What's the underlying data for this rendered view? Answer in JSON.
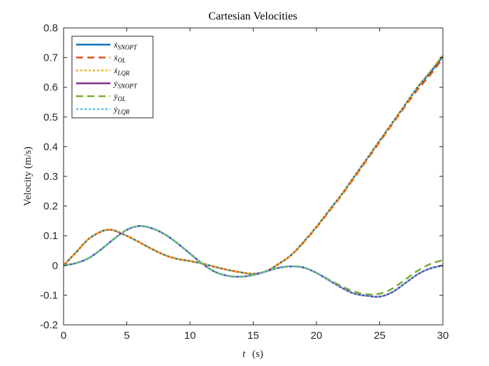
{
  "chart_data": {
    "type": "line",
    "title": "Cartesian Velocities",
    "xlabel": {
      "var": "t",
      "unit": "(s)"
    },
    "ylabel": "Velocity (m/s)",
    "xlim": [
      0,
      30
    ],
    "ylim": [
      -0.2,
      0.8
    ],
    "xticks": [
      "0",
      "5",
      "10",
      "15",
      "20",
      "25",
      "30"
    ],
    "yticks": [
      "-0.2",
      "-0.1",
      "0",
      "0.1",
      "0.2",
      "0.3",
      "0.4",
      "0.5",
      "0.6",
      "0.7",
      "0.8"
    ],
    "grid": false,
    "legend_position": "top-left",
    "series": [
      {
        "name": "ẋSNOPT",
        "base": "ẋ",
        "sub": "SNOPT",
        "color": "#0072bd",
        "dash": "solid",
        "x": [
          0,
          1,
          2,
          3,
          3.5,
          4,
          5,
          6,
          7,
          8,
          9,
          10,
          11,
          12,
          13,
          14,
          15,
          16,
          17,
          18,
          19,
          20,
          21,
          22,
          23,
          24,
          25,
          26,
          27,
          28,
          29,
          30
        ],
        "y": [
          0,
          0.045,
          0.09,
          0.115,
          0.12,
          0.118,
          0.1,
          0.078,
          0.055,
          0.035,
          0.022,
          0.015,
          0.006,
          -0.005,
          -0.015,
          -0.023,
          -0.028,
          -0.02,
          0.005,
          0.035,
          0.08,
          0.13,
          0.185,
          0.24,
          0.3,
          0.36,
          0.42,
          0.48,
          0.54,
          0.6,
          0.65,
          0.705
        ]
      },
      {
        "name": "ẋOL",
        "base": "ẋ",
        "sub": "OL",
        "color": "#d95319",
        "dash": "dashed",
        "x": [
          0,
          1,
          2,
          3,
          3.5,
          4,
          5,
          6,
          7,
          8,
          9,
          10,
          11,
          12,
          13,
          14,
          15,
          16,
          17,
          18,
          19,
          20,
          21,
          22,
          23,
          24,
          25,
          26,
          27,
          28,
          29,
          30
        ],
        "y": [
          0,
          0.045,
          0.09,
          0.115,
          0.12,
          0.118,
          0.1,
          0.078,
          0.055,
          0.035,
          0.022,
          0.015,
          0.006,
          -0.005,
          -0.015,
          -0.023,
          -0.028,
          -0.02,
          0.005,
          0.035,
          0.078,
          0.128,
          0.182,
          0.237,
          0.296,
          0.356,
          0.416,
          0.476,
          0.535,
          0.592,
          0.642,
          0.698
        ]
      },
      {
        "name": "ẋLQR",
        "base": "ẋ",
        "sub": "LQR",
        "color": "#edb120",
        "dash": "dotted",
        "x": [
          0,
          1,
          2,
          3,
          3.5,
          4,
          5,
          6,
          7,
          8,
          9,
          10,
          11,
          12,
          13,
          14,
          15,
          16,
          17,
          18,
          19,
          20,
          21,
          22,
          23,
          24,
          25,
          26,
          27,
          28,
          29,
          30
        ],
        "y": [
          0,
          0.045,
          0.09,
          0.115,
          0.12,
          0.118,
          0.1,
          0.078,
          0.055,
          0.035,
          0.022,
          0.015,
          0.006,
          -0.005,
          -0.015,
          -0.023,
          -0.028,
          -0.02,
          0.005,
          0.035,
          0.08,
          0.13,
          0.185,
          0.24,
          0.3,
          0.36,
          0.42,
          0.48,
          0.54,
          0.6,
          0.655,
          0.71
        ]
      },
      {
        "name": "ẏSNOPT",
        "base": "ẏ",
        "sub": "SNOPT",
        "color": "#7e2f8e",
        "dash": "solid",
        "x": [
          0,
          1,
          2,
          3,
          4,
          5,
          6,
          7,
          8,
          9,
          10,
          11,
          12,
          13,
          14,
          15,
          16,
          17,
          18,
          19,
          20,
          21,
          22,
          23,
          24,
          25,
          26,
          27,
          28,
          29,
          30
        ],
        "y": [
          0,
          0.008,
          0.025,
          0.055,
          0.09,
          0.12,
          0.133,
          0.125,
          0.105,
          0.075,
          0.04,
          0.005,
          -0.022,
          -0.035,
          -0.038,
          -0.032,
          -0.02,
          -0.008,
          -0.003,
          -0.007,
          -0.025,
          -0.05,
          -0.075,
          -0.095,
          -0.102,
          -0.105,
          -0.09,
          -0.06,
          -0.03,
          -0.01,
          0
        ]
      },
      {
        "name": "ẏOL",
        "base": "ẏ",
        "sub": "OL",
        "color": "#77ac30",
        "dash": "dashed",
        "x": [
          0,
          1,
          2,
          3,
          4,
          5,
          6,
          7,
          8,
          9,
          10,
          11,
          12,
          13,
          14,
          15,
          16,
          17,
          18,
          19,
          20,
          21,
          22,
          23,
          24,
          25,
          26,
          27,
          28,
          29,
          30
        ],
        "y": [
          0,
          0.008,
          0.025,
          0.055,
          0.09,
          0.12,
          0.133,
          0.125,
          0.105,
          0.075,
          0.04,
          0.005,
          -0.022,
          -0.035,
          -0.038,
          -0.032,
          -0.02,
          -0.008,
          -0.003,
          -0.007,
          -0.025,
          -0.048,
          -0.07,
          -0.088,
          -0.097,
          -0.095,
          -0.078,
          -0.048,
          -0.018,
          0.005,
          0.018
        ]
      },
      {
        "name": "ẏLQR",
        "base": "ẏ",
        "sub": "LQR",
        "color": "#4dbeee",
        "dash": "dotted",
        "x": [
          0,
          1,
          2,
          3,
          4,
          5,
          6,
          7,
          8,
          9,
          10,
          11,
          12,
          13,
          14,
          15,
          16,
          17,
          18,
          19,
          20,
          21,
          22,
          23,
          24,
          25,
          26,
          27,
          28,
          29,
          30
        ],
        "y": [
          0,
          0.008,
          0.025,
          0.055,
          0.09,
          0.12,
          0.133,
          0.125,
          0.105,
          0.075,
          0.04,
          0.005,
          -0.022,
          -0.035,
          -0.038,
          -0.032,
          -0.02,
          -0.008,
          -0.003,
          -0.007,
          -0.025,
          -0.05,
          -0.075,
          -0.095,
          -0.102,
          -0.105,
          -0.09,
          -0.06,
          -0.03,
          -0.01,
          0
        ]
      }
    ]
  }
}
